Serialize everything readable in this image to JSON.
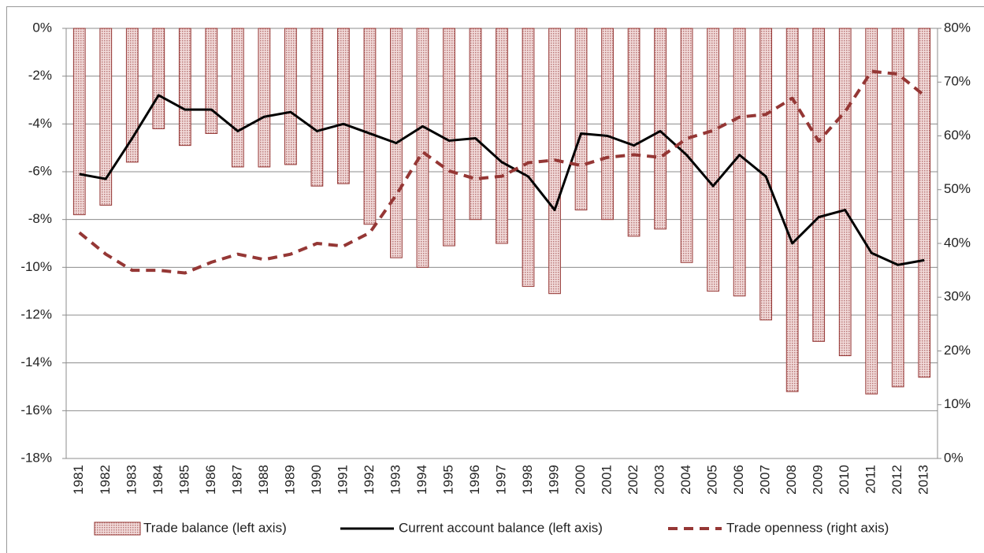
{
  "chart_data": {
    "type": "bar",
    "categories": [
      "1981",
      "1982",
      "1983",
      "1984",
      "1985",
      "1986",
      "1987",
      "1988",
      "1989",
      "1990",
      "1991",
      "1992",
      "1993",
      "1994",
      "1995",
      "1996",
      "1997",
      "1998",
      "1999",
      "2000",
      "2001",
      "2002",
      "2003",
      "2004",
      "2005",
      "2006",
      "2007",
      "2008",
      "2009",
      "2010",
      "2011",
      "2012",
      "2013"
    ],
    "series": [
      {
        "name": "Trade balance (left axis)",
        "type": "bar",
        "color": "#953735",
        "values": [
          -7.8,
          -7.4,
          -5.6,
          -4.2,
          -4.9,
          -4.4,
          -5.8,
          -5.8,
          -5.7,
          -6.6,
          -6.5,
          -8.2,
          -9.6,
          -10.0,
          -9.1,
          -8.0,
          -9.0,
          -10.8,
          -11.1,
          -7.6,
          -8.0,
          -8.7,
          -8.4,
          -9.8,
          -11.0,
          -11.2,
          -12.2,
          -15.2,
          -13.1,
          -13.7,
          -15.3,
          -15.0,
          -14.6
        ]
      },
      {
        "name": "Current account balance (left axis)",
        "type": "line",
        "color": "#000000",
        "values": [
          -6.1,
          -6.3,
          -4.6,
          -2.8,
          -3.4,
          -3.4,
          -4.3,
          -3.7,
          -3.5,
          -4.3,
          -4.0,
          -4.4,
          -4.8,
          -4.1,
          -4.7,
          -4.6,
          -5.6,
          -6.2,
          -7.6,
          -4.4,
          -4.5,
          -4.9,
          -4.3,
          -5.3,
          -6.6,
          -5.3,
          -6.2,
          -9.0,
          -7.9,
          -7.6,
          -9.4,
          -9.9,
          -9.7
        ]
      },
      {
        "name": "Trade openness (right axis)",
        "type": "line",
        "dashed": true,
        "axis": "y2",
        "color": "#953735",
        "values": [
          42,
          38,
          35,
          35,
          34.5,
          36.5,
          38,
          37,
          38,
          40,
          39.5,
          42,
          49,
          57,
          53.5,
          52,
          52.5,
          55,
          55.5,
          54.5,
          56,
          56.5,
          56,
          59.5,
          61,
          63.5,
          64,
          67,
          59,
          64.5,
          72,
          71.5,
          67.5
        ]
      }
    ],
    "ylim": [
      -18,
      0
    ],
    "yticks": [
      {
        "value": 0,
        "label": "0%"
      },
      {
        "value": -2,
        "label": "-2%"
      },
      {
        "value": -4,
        "label": "-4%"
      },
      {
        "value": -6,
        "label": "-6%"
      },
      {
        "value": -8,
        "label": "-8%"
      },
      {
        "value": -10,
        "label": "-10%"
      },
      {
        "value": -12,
        "label": "-12%"
      },
      {
        "value": -14,
        "label": "-14%"
      },
      {
        "value": -16,
        "label": "-16%"
      },
      {
        "value": -18,
        "label": "-18%"
      }
    ],
    "y2lim": [
      0,
      80
    ],
    "y2ticks": [
      {
        "value": 0,
        "label": "0%"
      },
      {
        "value": 10,
        "label": "10%"
      },
      {
        "value": 20,
        "label": "20%"
      },
      {
        "value": 30,
        "label": "30%"
      },
      {
        "value": 40,
        "label": "40%"
      },
      {
        "value": 50,
        "label": "50%"
      },
      {
        "value": 60,
        "label": "60%"
      },
      {
        "value": 70,
        "label": "70%"
      },
      {
        "value": 80,
        "label": "80%"
      }
    ],
    "grid": true,
    "legend": "bottom"
  }
}
